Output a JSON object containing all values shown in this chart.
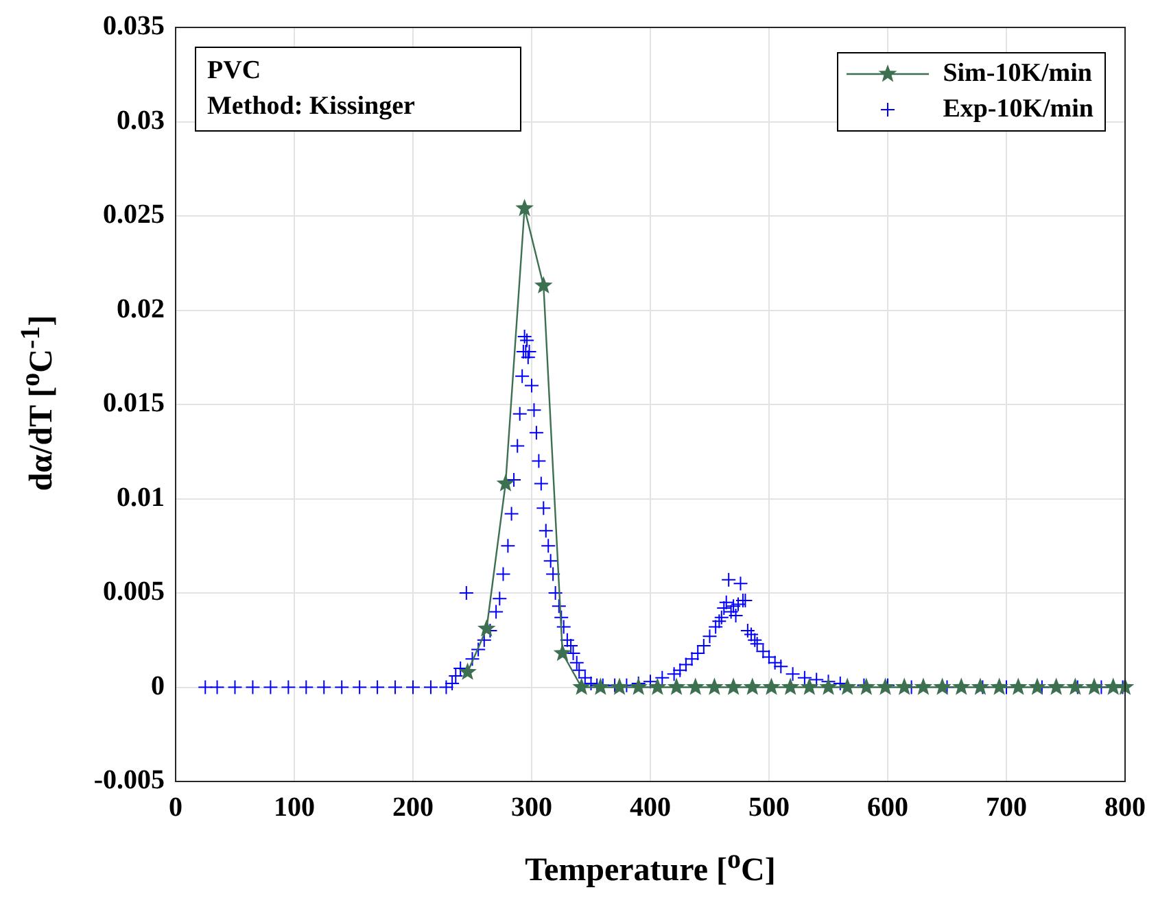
{
  "chart_data": {
    "type": "scatter",
    "xlabel": "Temperature [$^{o}$C]",
    "ylabel": "dα/dT [$^{o}$C$^{-1}$]",
    "annotations": [
      "PVC",
      "Method: Kissinger"
    ],
    "xlim": [
      0,
      800
    ],
    "xticks": [
      0,
      100,
      200,
      300,
      400,
      500,
      600,
      700,
      800
    ],
    "ylim": [
      -0.005,
      0.035
    ],
    "yticks": [
      -0.005,
      0,
      0.005,
      0.01,
      0.015,
      0.02,
      0.025,
      0.03,
      0.035
    ],
    "grid": true,
    "legend": "top right",
    "series": [
      {
        "name": "Sim-10K/min",
        "type": "line",
        "color": "#3c7050",
        "marker": "star",
        "line_style": "solid",
        "x": [
          246,
          262,
          278,
          294,
          310,
          326,
          342,
          358,
          374,
          390,
          406,
          422,
          438,
          454,
          470,
          486,
          502,
          518,
          534,
          550,
          566,
          582,
          598,
          614,
          630,
          646,
          662,
          678,
          694,
          710,
          726,
          742,
          758,
          774,
          790,
          800
        ],
        "values": [
          0.0008,
          0.0031,
          0.0108,
          0.0254,
          0.0213,
          0.0018,
          0,
          0,
          0,
          0,
          0,
          0,
          0,
          0,
          0,
          0,
          0,
          0,
          0,
          0,
          0,
          0,
          0,
          0,
          0,
          0,
          0,
          0,
          0,
          0,
          0,
          0,
          0,
          0,
          0,
          0
        ]
      },
      {
        "name": "Exp-10K/min",
        "type": "scatter",
        "color": "#0000ff",
        "marker": "cross",
        "x": [
          25,
          35,
          50,
          65,
          80,
          95,
          110,
          125,
          140,
          155,
          170,
          185,
          200,
          215,
          228,
          233,
          236,
          240,
          245,
          250,
          255,
          260,
          265,
          270,
          273,
          276,
          280,
          283,
          285,
          288,
          290,
          292,
          293,
          294,
          295,
          296,
          297,
          298,
          300,
          302,
          304,
          306,
          308,
          310,
          312,
          314,
          316,
          318,
          320,
          323,
          325,
          327,
          330,
          333,
          335,
          338,
          340,
          345,
          350,
          355,
          360,
          370,
          380,
          390,
          400,
          410,
          420,
          425,
          430,
          435,
          440,
          445,
          450,
          455,
          458,
          460,
          462,
          464,
          466,
          468,
          470,
          472,
          474,
          476,
          478,
          480,
          482,
          485,
          488,
          490,
          495,
          500,
          505,
          510,
          520,
          530,
          540,
          550,
          560,
          580,
          600,
          620,
          650,
          680,
          700,
          730,
          760,
          780,
          798
        ],
        "values": [
          0,
          0,
          0,
          0,
          0,
          0,
          0,
          0,
          0,
          0,
          0,
          0,
          0,
          0,
          0,
          0.0002,
          0.0006,
          0.001,
          0.005,
          0.0015,
          0.002,
          0.0025,
          0.003,
          0.004,
          0.0047,
          0.006,
          0.0075,
          0.0092,
          0.011,
          0.0128,
          0.0145,
          0.0165,
          0.0178,
          0.0186,
          0.0178,
          0.0184,
          0.0175,
          0.0178,
          0.016,
          0.0147,
          0.0135,
          0.012,
          0.0108,
          0.0095,
          0.0083,
          0.0075,
          0.0067,
          0.006,
          0.005,
          0.0043,
          0.0037,
          0.0032,
          0.0025,
          0.0022,
          0.0018,
          0.0013,
          0.0009,
          0.0005,
          0.0002,
          0.0001,
          0.0001,
          0.0001,
          0.0001,
          0.0002,
          0.0003,
          0.0005,
          0.0007,
          0.0009,
          0.0012,
          0.0015,
          0.0018,
          0.0022,
          0.0027,
          0.0032,
          0.0035,
          0.0037,
          0.0042,
          0.0045,
          0.0057,
          0.004,
          0.0043,
          0.0038,
          0.0044,
          0.0055,
          0.0046,
          0.0046,
          0.003,
          0.0028,
          0.0025,
          0.0023,
          0.0019,
          0.0016,
          0.0013,
          0.0011,
          0.0007,
          0.0005,
          0.0004,
          0.0003,
          0.0002,
          0.0001,
          0.0001,
          0,
          0,
          0,
          0,
          0,
          0,
          0,
          0
        ]
      }
    ]
  }
}
